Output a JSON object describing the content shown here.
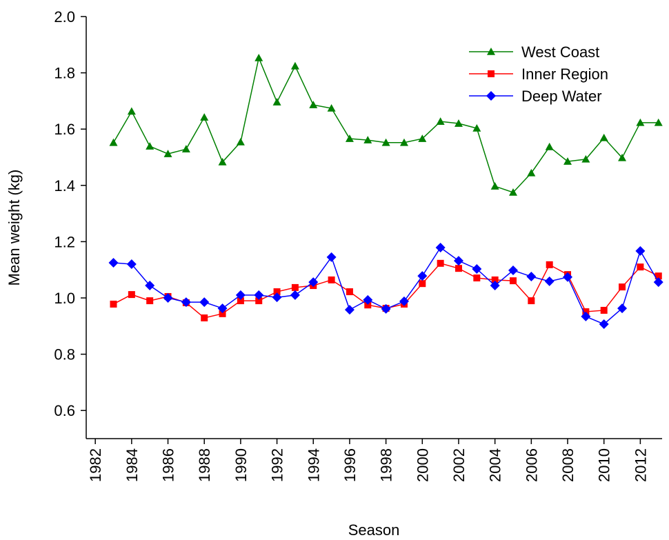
{
  "chart_data": {
    "type": "line",
    "xlabel": "Season",
    "ylabel": "Mean weight (kg)",
    "x": [
      1983,
      1984,
      1985,
      1986,
      1987,
      1988,
      1989,
      1990,
      1991,
      1992,
      1993,
      1994,
      1995,
      1996,
      1997,
      1998,
      1999,
      2000,
      2001,
      2002,
      2003,
      2004,
      2005,
      2006,
      2007,
      2008,
      2009,
      2010,
      2011,
      2012,
      2013
    ],
    "series": [
      {
        "name": "West Coast",
        "color": "#008000",
        "marker": "triangle",
        "values": [
          1.552,
          1.663,
          1.539,
          1.512,
          1.529,
          1.642,
          1.483,
          1.554,
          1.853,
          1.696,
          1.824,
          1.686,
          1.674,
          1.566,
          1.561,
          1.552,
          1.552,
          1.566,
          1.627,
          1.62,
          1.603,
          1.397,
          1.375,
          1.444,
          1.537,
          1.485,
          1.493,
          1.569,
          1.498,
          1.623,
          1.623
        ]
      },
      {
        "name": "Inner Region",
        "color": "#ff0000",
        "marker": "square",
        "values": [
          0.978,
          1.012,
          0.99,
          1.005,
          0.983,
          0.929,
          0.944,
          0.99,
          0.99,
          1.022,
          1.037,
          1.044,
          1.064,
          1.022,
          0.975,
          0.963,
          0.978,
          1.051,
          1.123,
          1.105,
          1.071,
          1.064,
          1.061,
          0.99,
          1.118,
          1.083,
          0.951,
          0.956,
          1.039,
          1.11,
          1.078
        ]
      },
      {
        "name": "Deep Water",
        "color": "#0000ff",
        "marker": "diamond",
        "values": [
          1.125,
          1.12,
          1.044,
          1.0,
          0.985,
          0.985,
          0.963,
          1.01,
          1.01,
          1.002,
          1.01,
          1.056,
          1.145,
          0.958,
          0.993,
          0.961,
          0.988,
          1.078,
          1.179,
          1.132,
          1.103,
          1.044,
          1.098,
          1.076,
          1.059,
          1.074,
          0.934,
          0.907,
          0.963,
          1.167,
          1.056
        ]
      }
    ],
    "xlim": [
      1981.5,
      2013.2
    ],
    "xticks": [
      1982,
      1984,
      1986,
      1988,
      1990,
      1992,
      1994,
      1996,
      1998,
      2000,
      2002,
      2004,
      2006,
      2008,
      2010,
      2012
    ],
    "ylim": [
      0.5,
      2.0
    ],
    "yticks": [
      0.6,
      0.8,
      {
        "value": 1,
        "label": "1.0"
      },
      1.2,
      1.4,
      1.6,
      1.8,
      {
        "value": 2,
        "label": "2.0"
      }
    ],
    "legend": "upper right"
  }
}
